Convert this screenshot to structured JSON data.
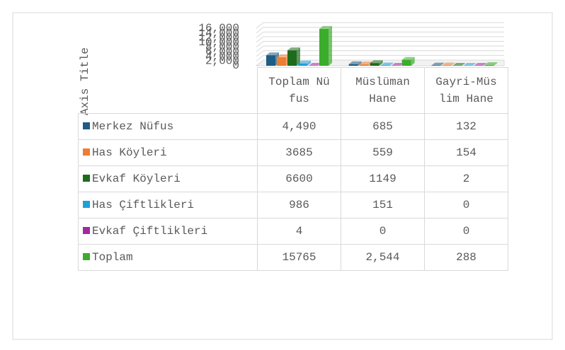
{
  "chart_data": {
    "type": "bar3d",
    "y_label": "Axis Title",
    "categories": [
      "Toplam Nüfus",
      "Müslüman Hane",
      "Gayri-Müslim Hane"
    ],
    "series": [
      {
        "name": "Merkez Nüfus",
        "color": "#1f5c85",
        "values": [
          4490,
          685,
          132
        ],
        "value_labels": [
          "4,490",
          "685",
          "132"
        ]
      },
      {
        "name": "Has Köyleri",
        "color": "#ed7d31",
        "values": [
          3685,
          559,
          154
        ]
      },
      {
        "name": "Evkaf Köyleri",
        "color": "#1e6b1e",
        "values": [
          6600,
          1149,
          2
        ]
      },
      {
        "name": "Has Çiftlikleri",
        "color": "#1fa0d8",
        "values": [
          986,
          151,
          0
        ]
      },
      {
        "name": "Evkaf Çiftlikleri",
        "color": "#a02aa0",
        "values": [
          4,
          0,
          0
        ]
      },
      {
        "name": "Toplam",
        "color": "#3cac2c",
        "values": [
          15765,
          2544,
          288
        ],
        "value_labels": [
          "15765",
          "2,544",
          "288"
        ]
      }
    ],
    "ylim": [
      0,
      16000
    ],
    "yticks": [
      0,
      {
        "value": 2000,
        "label": "2,000"
      },
      {
        "value": 4000,
        "label": "4,000"
      },
      {
        "value": 6000,
        "label": "6,000"
      },
      {
        "value": 8000,
        "label": "8,000"
      },
      {
        "value": 10000,
        "label": "10,000"
      },
      {
        "value": 12000,
        "label": "12,000"
      },
      {
        "value": 14000,
        "label": "14,000"
      },
      {
        "value": 16000,
        "label": "16,000"
      }
    ],
    "grid": true
  }
}
